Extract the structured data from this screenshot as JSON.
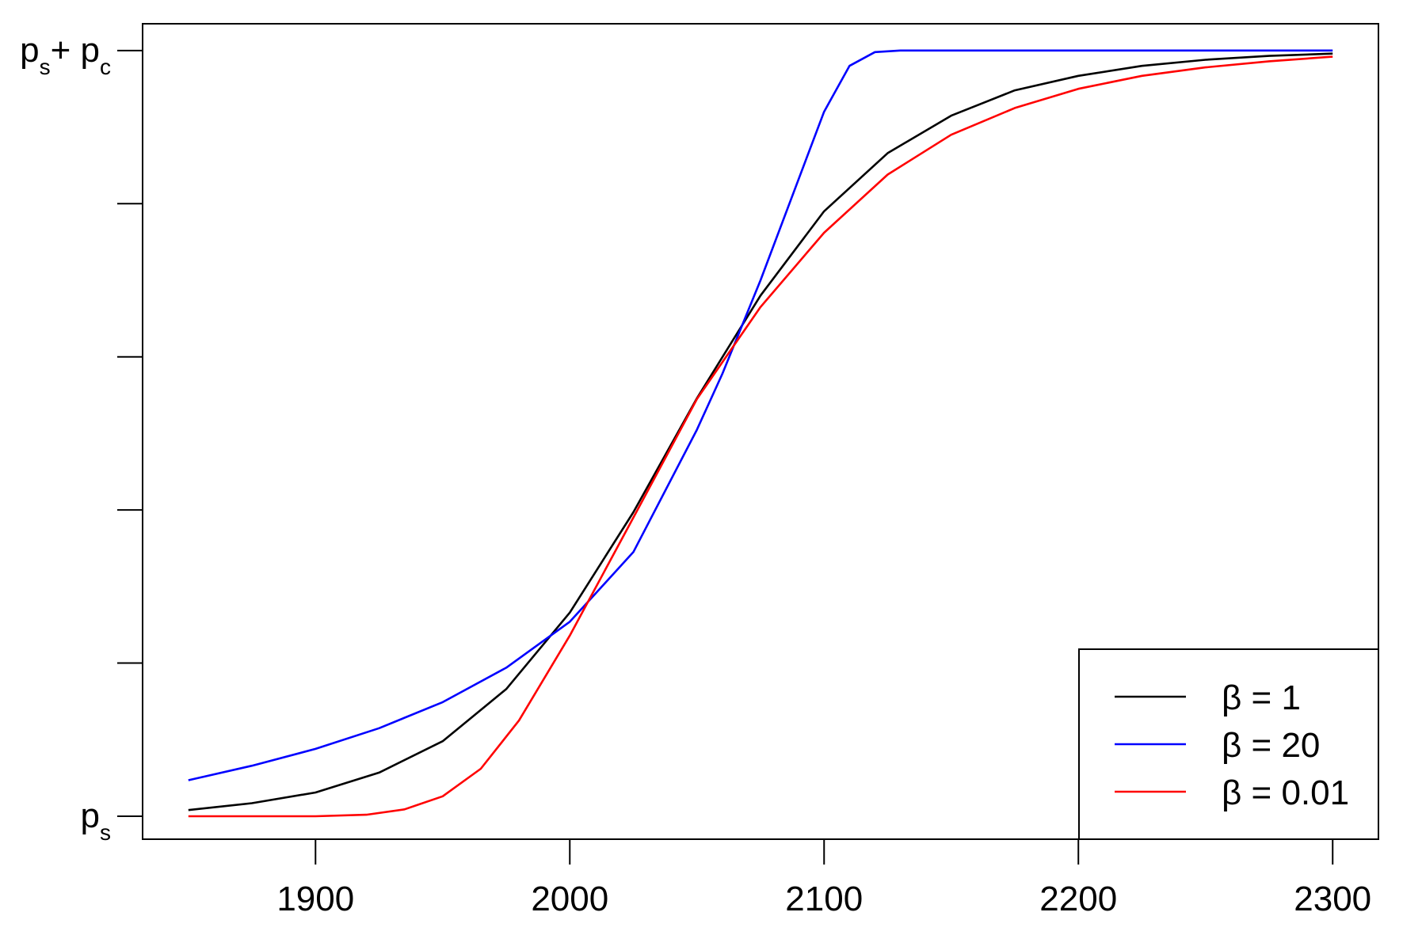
{
  "chart_data": {
    "type": "line",
    "title": "",
    "xlabel": "",
    "ylabel": "",
    "xlim": [
      1832,
      2318
    ],
    "ylim": [
      -0.03,
      1.035
    ],
    "x_ticks": [
      1900,
      2000,
      2100,
      2200,
      2300
    ],
    "y_ticks": [
      0,
      0.2,
      0.4,
      0.6,
      0.8,
      1.0
    ],
    "y_tick_labels": [
      {
        "value": 0,
        "main": "p",
        "sub": "s"
      },
      {
        "value": 1,
        "main": "p",
        "sub": "s",
        "main2": "+ p",
        "sub2": "c"
      }
    ],
    "grid": false,
    "legend_position": "bottom-right",
    "series": [
      {
        "name": "β = 1",
        "color": "#000000",
        "x": [
          1850,
          1875,
          1900,
          1925,
          1950,
          1975,
          2000,
          2025,
          2050,
          2075,
          2100,
          2125,
          2150,
          2175,
          2200,
          2225,
          2250,
          2275,
          2300
        ],
        "y": [
          0.008,
          0.017,
          0.031,
          0.057,
          0.098,
          0.166,
          0.266,
          0.397,
          0.546,
          0.68,
          0.79,
          0.866,
          0.915,
          0.948,
          0.967,
          0.98,
          0.988,
          0.993,
          0.996
        ]
      },
      {
        "name": "β = 20",
        "color": "#0000ff",
        "x": [
          1850,
          1875,
          1900,
          1925,
          1950,
          1975,
          2000,
          2025,
          2050,
          2060,
          2075,
          2090,
          2100,
          2110,
          2120,
          2130,
          2150,
          2200,
          2250,
          2300
        ],
        "y": [
          0.047,
          0.066,
          0.088,
          0.115,
          0.149,
          0.194,
          0.254,
          0.345,
          0.505,
          0.578,
          0.7,
          0.832,
          0.92,
          0.98,
          0.998,
          1.0,
          1.0,
          1.0,
          1.0,
          1.0
        ]
      },
      {
        "name": "β = 0.01",
        "color": "#ff0000",
        "x": [
          1850,
          1875,
          1900,
          1920,
          1935,
          1950,
          1965,
          1980,
          2000,
          2025,
          2050,
          2075,
          2100,
          2125,
          2150,
          2175,
          2200,
          2225,
          2250,
          2275,
          2300
        ],
        "y": [
          0.0,
          0.0,
          0.0,
          0.002,
          0.009,
          0.026,
          0.062,
          0.125,
          0.236,
          0.39,
          0.545,
          0.665,
          0.762,
          0.838,
          0.89,
          0.925,
          0.95,
          0.967,
          0.978,
          0.986,
          0.992
        ]
      }
    ]
  }
}
